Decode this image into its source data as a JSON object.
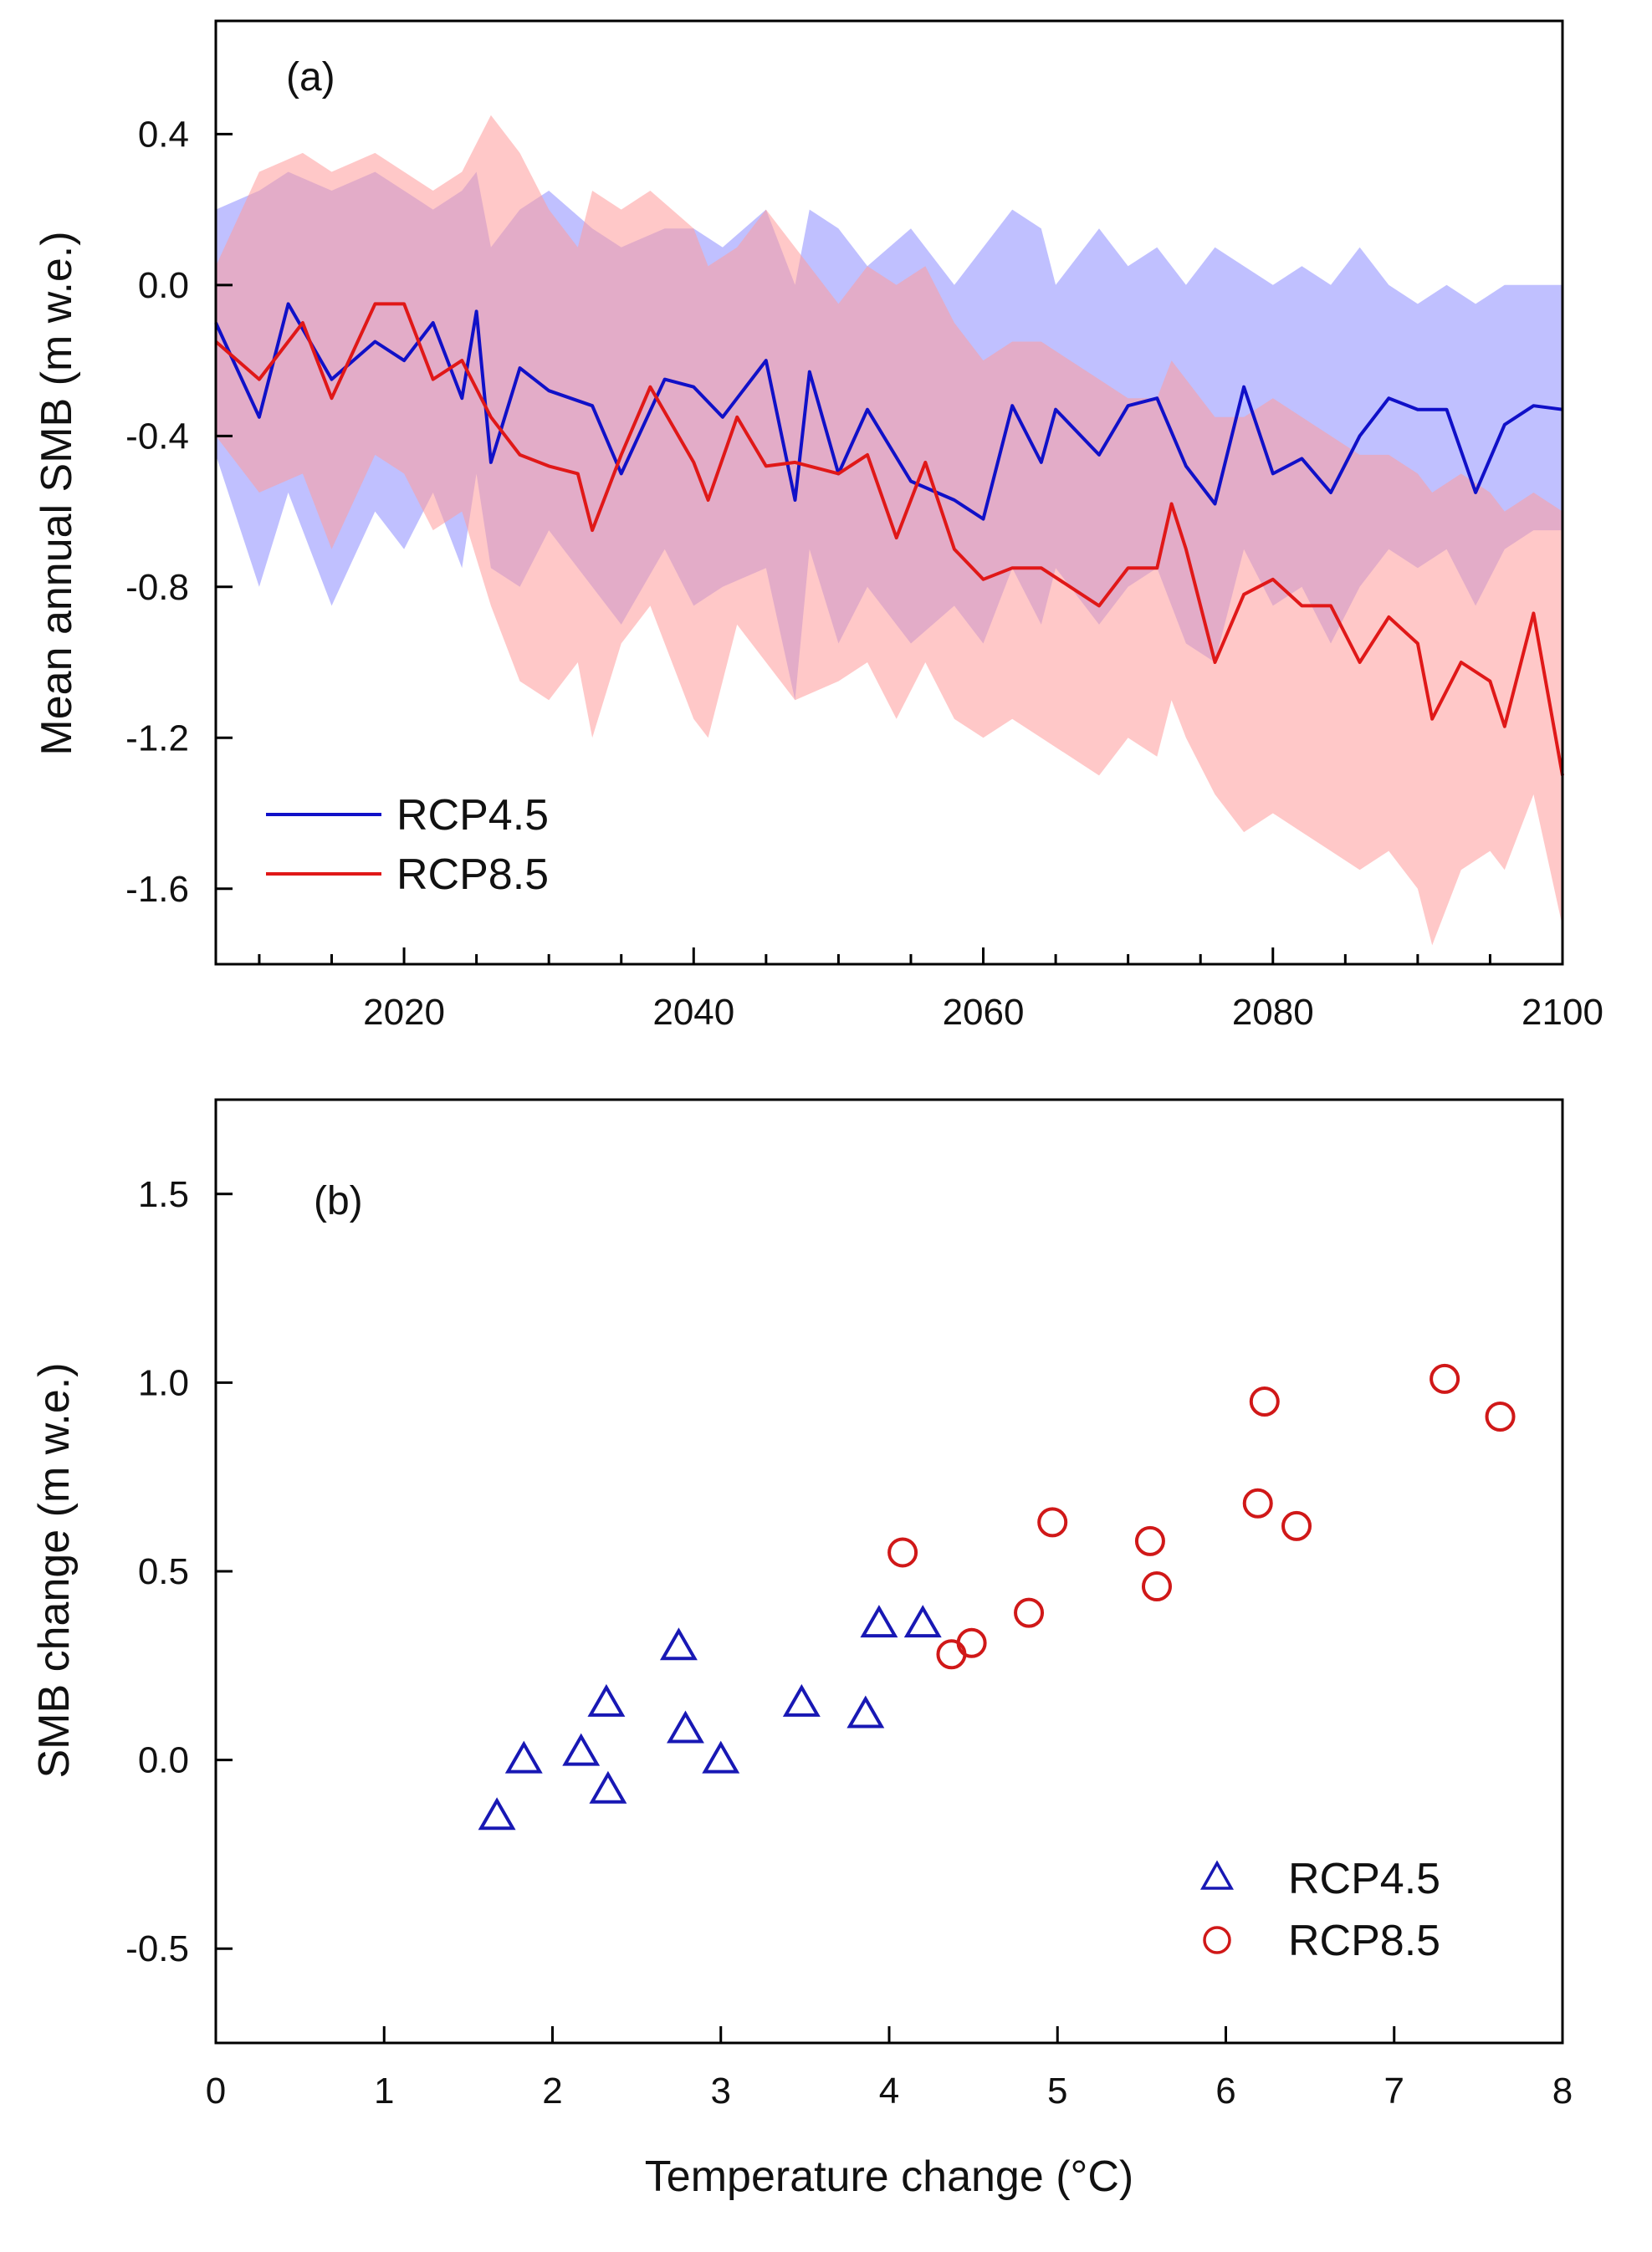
{
  "chart_data": [
    {
      "panel": "(a)",
      "type": "line",
      "xlabel": "",
      "ylabel": "Mean annual SMB (m w.e.)",
      "xlim": [
        2007,
        2100
      ],
      "ylim": [
        -1.8,
        0.7
      ],
      "x_ticks": [
        2020,
        2040,
        2060,
        2080,
        2100
      ],
      "y_ticks": [
        0.4,
        0.0,
        -0.4,
        -0.8,
        -1.2,
        -1.6
      ],
      "y_tick_labels": [
        "0.4",
        "0.0",
        "-0.4",
        "-0.8",
        "-1.2",
        "-1.6"
      ],
      "legend": {
        "placement": "bottom-left",
        "entries": [
          "RCP4.5",
          "RCP8.5"
        ]
      },
      "series": [
        {
          "name": "RCP4.5",
          "color": "#1010c8",
          "band_color": "#8c8cff",
          "x": [
            2007,
            2010,
            2012,
            2015,
            2018,
            2020,
            2022,
            2024,
            2025,
            2026,
            2028,
            2030,
            2033,
            2035,
            2038,
            2040,
            2042,
            2045,
            2047,
            2048,
            2050,
            2052,
            2055,
            2058,
            2060,
            2062,
            2064,
            2065,
            2068,
            2070,
            2072,
            2074,
            2076,
            2078,
            2080,
            2082,
            2084,
            2086,
            2088,
            2090,
            2092,
            2094,
            2096,
            2098,
            2100
          ],
          "values": [
            -0.1,
            -0.35,
            -0.05,
            -0.25,
            -0.15,
            -0.2,
            -0.1,
            -0.3,
            -0.07,
            -0.47,
            -0.22,
            -0.28,
            -0.32,
            -0.5,
            -0.25,
            -0.27,
            -0.35,
            -0.2,
            -0.57,
            -0.23,
            -0.5,
            -0.33,
            -0.52,
            -0.57,
            -0.62,
            -0.32,
            -0.47,
            -0.33,
            -0.45,
            -0.32,
            -0.3,
            -0.48,
            -0.58,
            -0.27,
            -0.5,
            -0.46,
            -0.55,
            -0.4,
            -0.3,
            -0.33,
            -0.33,
            -0.55,
            -0.37,
            -0.32,
            -0.33
          ],
          "band_upper": [
            0.2,
            0.25,
            0.3,
            0.25,
            0.3,
            0.25,
            0.2,
            0.25,
            0.3,
            0.1,
            0.2,
            0.25,
            0.15,
            0.1,
            0.15,
            0.15,
            0.1,
            0.2,
            0.0,
            0.2,
            0.15,
            0.05,
            0.15,
            0.0,
            0.1,
            0.2,
            0.15,
            0.0,
            0.15,
            0.05,
            0.1,
            0.0,
            0.1,
            0.05,
            0.0,
            0.05,
            0.0,
            0.1,
            0.0,
            -0.05,
            0.0,
            -0.05,
            0.0,
            0.0,
            0.0
          ],
          "band_lower": [
            -0.45,
            -0.8,
            -0.55,
            -0.85,
            -0.6,
            -0.7,
            -0.55,
            -0.75,
            -0.5,
            -0.75,
            -0.8,
            -0.65,
            -0.8,
            -0.9,
            -0.7,
            -0.85,
            -0.8,
            -0.75,
            -1.1,
            -0.7,
            -0.95,
            -0.8,
            -0.95,
            -0.85,
            -0.95,
            -0.75,
            -0.9,
            -0.75,
            -0.9,
            -0.8,
            -0.75,
            -0.95,
            -1.0,
            -0.7,
            -0.85,
            -0.8,
            -0.95,
            -0.8,
            -0.7,
            -0.75,
            -0.7,
            -0.85,
            -0.7,
            -0.65,
            -0.65
          ]
        },
        {
          "name": "RCP8.5",
          "color": "#e01818",
          "band_color": "#ff9a9a",
          "x": [
            2007,
            2010,
            2013,
            2015,
            2018,
            2020,
            2022,
            2024,
            2026,
            2028,
            2030,
            2032,
            2033,
            2035,
            2037,
            2040,
            2041,
            2043,
            2045,
            2047,
            2050,
            2052,
            2054,
            2056,
            2058,
            2060,
            2062,
            2064,
            2066,
            2068,
            2070,
            2072,
            2073,
            2074,
            2076,
            2078,
            2080,
            2082,
            2084,
            2086,
            2088,
            2090,
            2091,
            2093,
            2095,
            2096,
            2098,
            2100
          ],
          "values": [
            -0.15,
            -0.25,
            -0.1,
            -0.3,
            -0.05,
            -0.05,
            -0.25,
            -0.2,
            -0.35,
            -0.45,
            -0.48,
            -0.5,
            -0.65,
            -0.45,
            -0.27,
            -0.47,
            -0.57,
            -0.35,
            -0.48,
            -0.47,
            -0.5,
            -0.45,
            -0.67,
            -0.47,
            -0.7,
            -0.78,
            -0.75,
            -0.75,
            -0.8,
            -0.85,
            -0.75,
            -0.75,
            -0.58,
            -0.7,
            -1.0,
            -0.82,
            -0.78,
            -0.85,
            -0.85,
            -1.0,
            -0.88,
            -0.95,
            -1.15,
            -1.0,
            -1.05,
            -1.17,
            -0.87,
            -1.3
          ],
          "band_upper": [
            0.05,
            0.3,
            0.35,
            0.3,
            0.35,
            0.3,
            0.25,
            0.3,
            0.45,
            0.35,
            0.2,
            0.1,
            0.25,
            0.2,
            0.25,
            0.15,
            0.05,
            0.1,
            0.2,
            0.1,
            -0.05,
            0.05,
            0.0,
            0.05,
            -0.1,
            -0.2,
            -0.15,
            -0.15,
            -0.2,
            -0.25,
            -0.3,
            -0.3,
            -0.2,
            -0.25,
            -0.35,
            -0.35,
            -0.3,
            -0.35,
            -0.4,
            -0.45,
            -0.45,
            -0.5,
            -0.55,
            -0.5,
            -0.55,
            -0.6,
            -0.55,
            -0.6
          ],
          "band_lower": [
            -0.4,
            -0.55,
            -0.5,
            -0.7,
            -0.45,
            -0.5,
            -0.65,
            -0.6,
            -0.85,
            -1.05,
            -1.1,
            -1.0,
            -1.2,
            -0.95,
            -0.85,
            -1.15,
            -1.2,
            -0.9,
            -1.0,
            -1.1,
            -1.05,
            -1.0,
            -1.15,
            -1.0,
            -1.15,
            -1.2,
            -1.15,
            -1.2,
            -1.25,
            -1.3,
            -1.2,
            -1.25,
            -1.1,
            -1.2,
            -1.35,
            -1.45,
            -1.4,
            -1.45,
            -1.5,
            -1.55,
            -1.5,
            -1.6,
            -1.75,
            -1.55,
            -1.5,
            -1.55,
            -1.35,
            -1.7
          ]
        }
      ]
    },
    {
      "panel": "(b)",
      "type": "scatter",
      "xlabel": "Temperature change (°C)",
      "ylabel": "SMB change (m w.e.)",
      "xlim": [
        0,
        8
      ],
      "ylim": [
        -0.75,
        1.75
      ],
      "x_ticks": [
        0,
        1,
        2,
        3,
        4,
        5,
        6,
        7,
        8
      ],
      "y_ticks": [
        1.5,
        1.0,
        0.5,
        0.0,
        -0.5
      ],
      "y_tick_labels": [
        "1.5",
        "1.0",
        "0.5",
        "0.0",
        "-0.5"
      ],
      "legend": {
        "placement": "bottom-right",
        "entries": [
          "RCP4.5",
          "RCP8.5"
        ]
      },
      "series": [
        {
          "name": "RCP4.5",
          "marker": "triangle",
          "color": "#1818b4",
          "x": [
            1.67,
            1.83,
            2.17,
            2.32,
            2.33,
            2.75,
            2.79,
            3.0,
            3.48,
            3.86,
            3.94,
            4.2
          ],
          "y": [
            -0.15,
            0.0,
            0.02,
            0.15,
            -0.08,
            0.3,
            0.08,
            0.0,
            0.15,
            0.12,
            0.36,
            0.36
          ]
        },
        {
          "name": "RCP8.5",
          "marker": "circle",
          "color": "#d01818",
          "x": [
            4.08,
            4.37,
            4.49,
            4.83,
            4.97,
            5.55,
            5.59,
            6.19,
            6.23,
            6.42,
            7.3,
            7.63
          ],
          "y": [
            0.55,
            0.28,
            0.31,
            0.39,
            0.63,
            0.58,
            0.46,
            0.68,
            0.95,
            0.62,
            1.01,
            0.91
          ]
        }
      ]
    }
  ]
}
